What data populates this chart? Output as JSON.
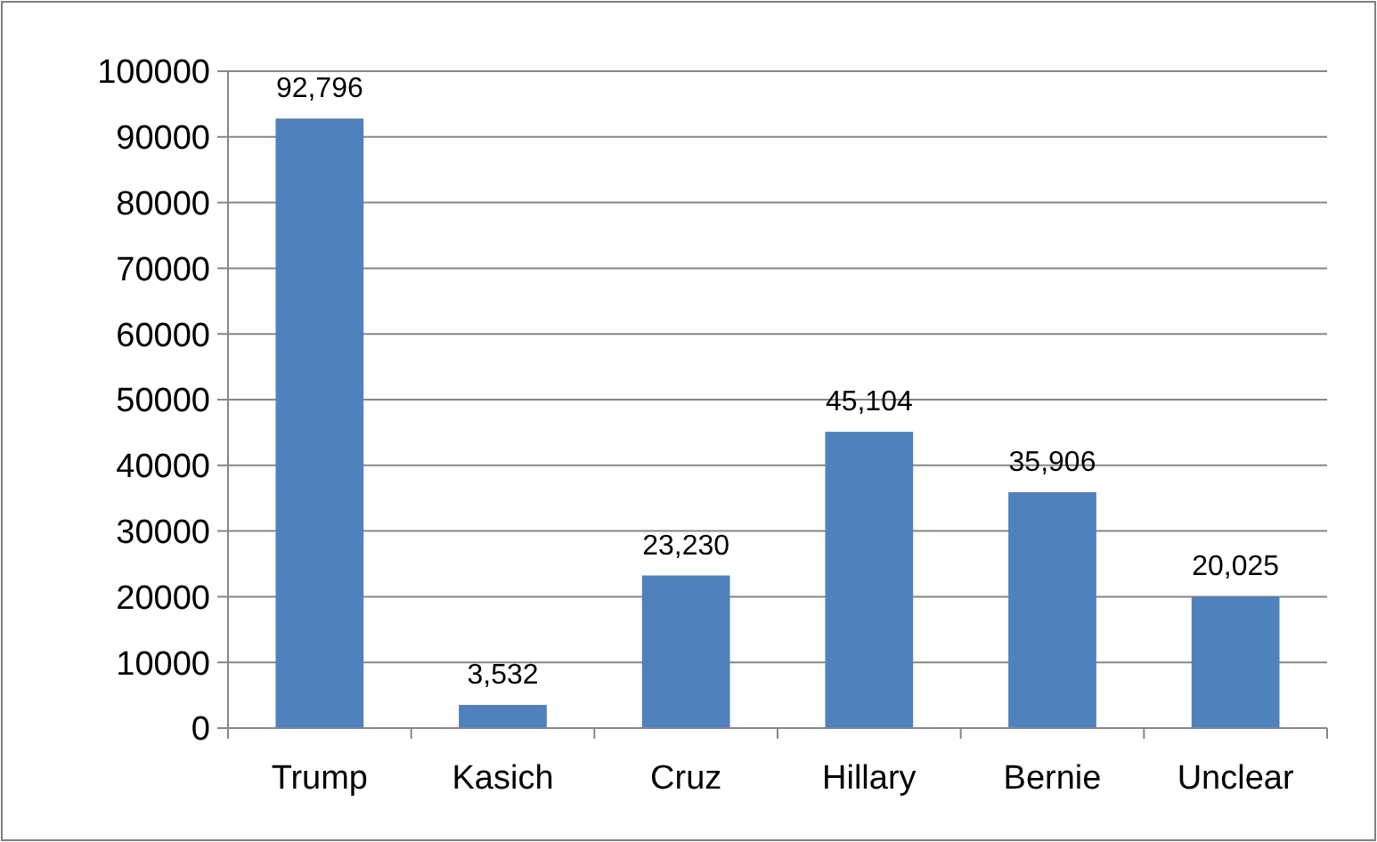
{
  "chart_data": {
    "type": "bar",
    "categories": [
      "Trump",
      "Kasich",
      "Cruz",
      "Hillary",
      "Bernie",
      "Unclear"
    ],
    "values": [
      92796,
      3532,
      23230,
      45104,
      35906,
      20025
    ],
    "value_labels": [
      "92,796",
      "3,532",
      "23,230",
      "45,104",
      "35,906",
      "20,025"
    ],
    "color": "#4f81bd",
    "ylim": [
      0,
      100000
    ],
    "yticks": [
      0,
      10000,
      20000,
      30000,
      40000,
      50000,
      60000,
      70000,
      80000,
      90000,
      100000
    ],
    "grid": "y"
  }
}
